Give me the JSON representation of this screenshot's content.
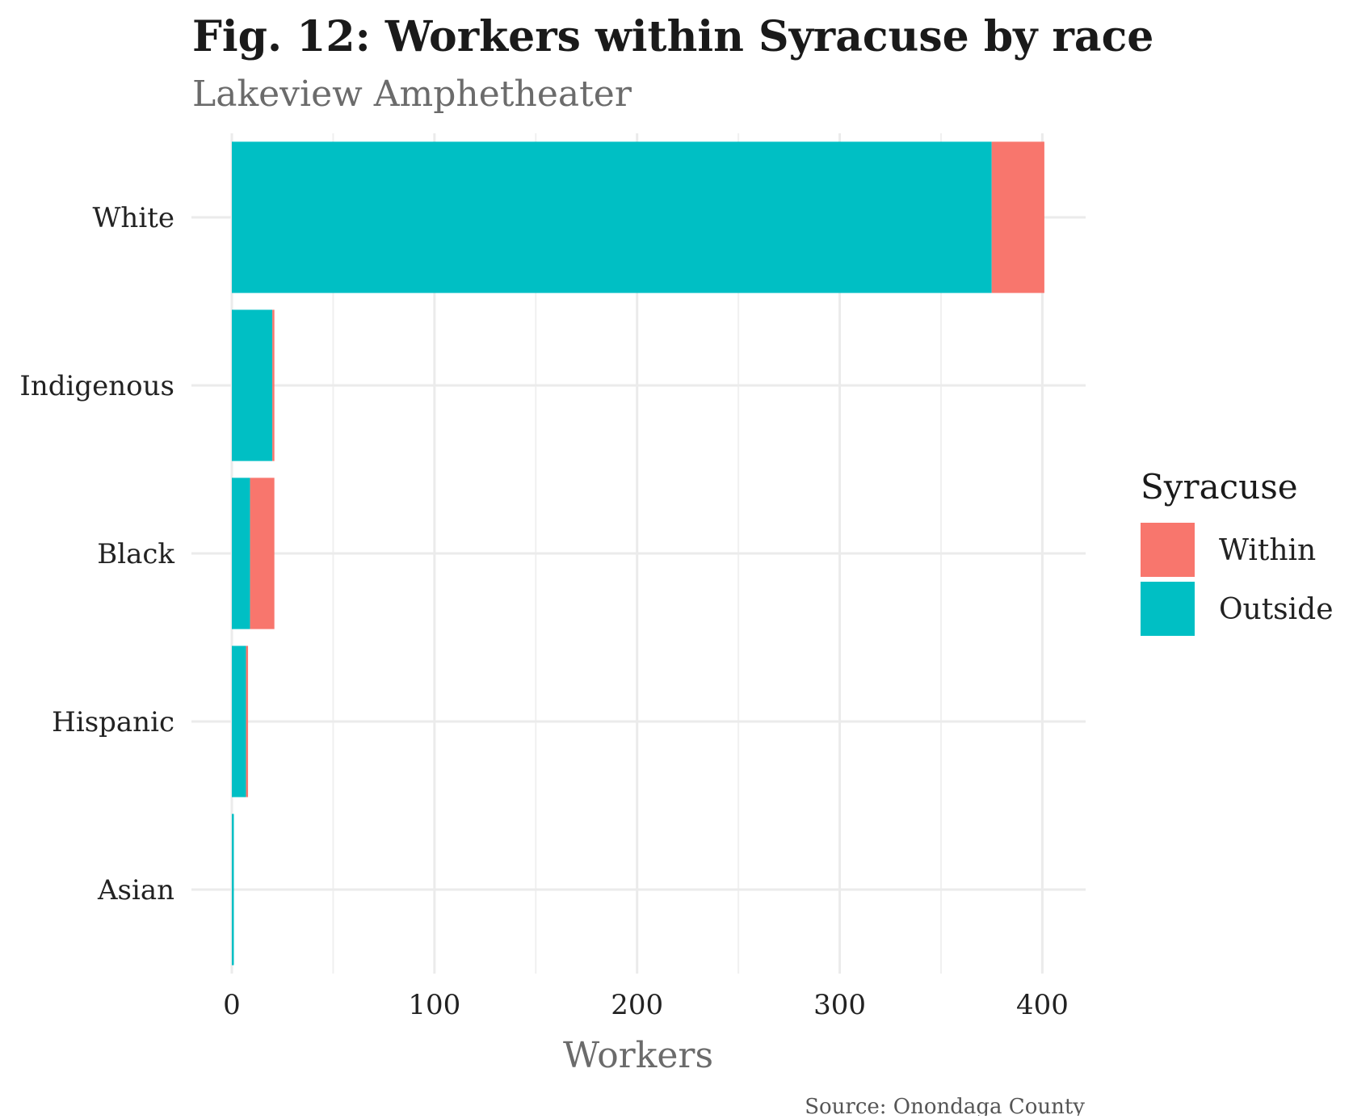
{
  "chart_data": {
    "type": "bar",
    "orientation": "horizontal",
    "stacked": true,
    "title": "Fig. 12: Workers within Syracuse by race",
    "subtitle": "Lakeview Amphetheater",
    "xlabel": "Workers",
    "ylabel": "",
    "caption": "Source: Onondaga County",
    "categories": [
      "White",
      "Indigenous",
      "Black",
      "Hispanic",
      "Asian"
    ],
    "series": [
      {
        "name": "Outside",
        "color": "#00BFC4",
        "values": [
          375,
          20,
          9,
          7,
          1
        ]
      },
      {
        "name": "Within",
        "color": "#F8766D",
        "values": [
          26,
          1,
          12,
          1,
          0
        ]
      }
    ],
    "xlim": [
      0,
      420
    ],
    "xticks": [
      0,
      100,
      200,
      300,
      400
    ],
    "grid": true,
    "legend": {
      "title": "Syracuse",
      "position": "right",
      "items": [
        {
          "label": "Within",
          "color": "#F8766D"
        },
        {
          "label": "Outside",
          "color": "#00BFC4"
        }
      ]
    }
  }
}
